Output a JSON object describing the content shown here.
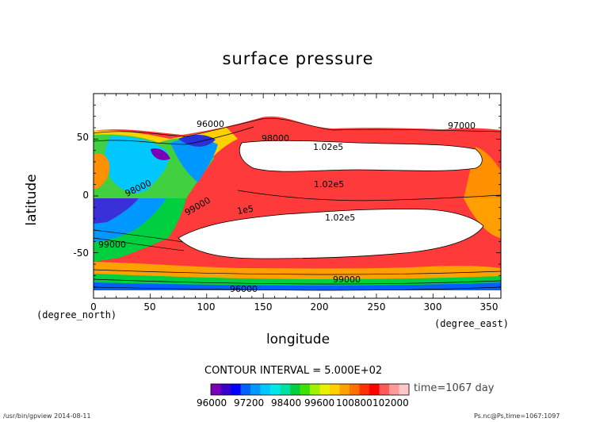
{
  "chart_data": {
    "type": "heatmap",
    "title": "surface pressure",
    "xlabel": "longitude",
    "ylabel": "latitude",
    "x_unit": "(degree_east)",
    "y_unit": "(degree_north)",
    "xlim": [
      0,
      360
    ],
    "ylim": [
      -90,
      90
    ],
    "x_ticks": [
      "0",
      "50",
      "100",
      "150",
      "200",
      "250",
      "300",
      "350"
    ],
    "y_ticks": [
      "50",
      "0",
      "-50"
    ],
    "contour_interval": "CONTOUR INTERVAL = 5.000E+02",
    "time": "time=1067 day",
    "colorbar_labels": [
      "96000",
      "97200",
      "98400",
      "99600",
      "100800",
      "102000"
    ],
    "colorbar_colors": [
      "#7a00b8",
      "#3a00c8",
      "#0000ff",
      "#0060ff",
      "#0098ff",
      "#00c8ff",
      "#00e8e8",
      "#00e0a0",
      "#00d040",
      "#40e000",
      "#a0f000",
      "#e8f000",
      "#ffd000",
      "#ffa000",
      "#ff7000",
      "#ff3000",
      "#ff0000",
      "#ff5a5a",
      "#ff9a9a",
      "#ffc8c8"
    ],
    "contour_labels": [
      "96000",
      "98000",
      "99000",
      "1.02e5",
      "1e5",
      "98000",
      "99000",
      "1.02e5",
      "97000",
      "1.02e5",
      "99000",
      "96000"
    ]
  },
  "footer": {
    "left": "/usr/bin/gpview  2014-08-11",
    "right": "Ps.nc@Ps,time=1067:1097"
  }
}
